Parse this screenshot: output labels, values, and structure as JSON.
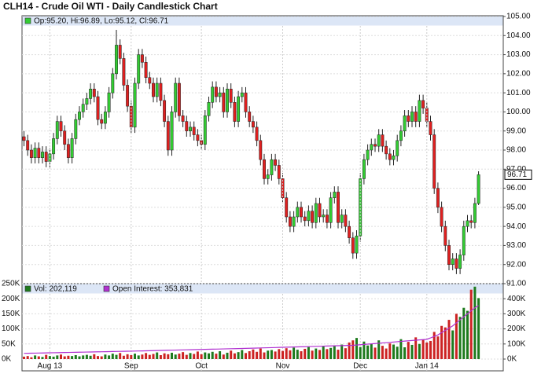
{
  "chart_data": [
    {
      "type": "candlestick",
      "title": "CLH14 - Crude Oil WTI - Daily Candlestick Chart",
      "legend": "Op:95.20, Hi:96.89, Lo:95.12, Cl:96.71",
      "up_color": "#33cc33",
      "down_color": "#e02020",
      "grid": true,
      "ylim": [
        91,
        105
      ],
      "yticks": [
        {
          "value": 91,
          "label": "91.00"
        },
        {
          "value": 92,
          "label": "92.00"
        },
        {
          "value": 93,
          "label": "93.00"
        },
        {
          "value": 94,
          "label": "94.00"
        },
        {
          "value": 95,
          "label": "95.00"
        },
        {
          "value": 96,
          "label": "96.00"
        },
        {
          "value": 97,
          "label": "97.00"
        },
        {
          "value": 98,
          "label": "98.00"
        },
        {
          "value": 99,
          "label": "99.00"
        },
        {
          "value": 100,
          "label": "100.00"
        },
        {
          "value": 101,
          "label": "101.00"
        },
        {
          "value": 102,
          "label": "102.00"
        },
        {
          "value": 103,
          "label": "103.00"
        },
        {
          "value": 104,
          "label": "104.00"
        },
        {
          "value": 105,
          "label": "105.00"
        }
      ],
      "open": [
        98.7,
        98.5,
        98.0,
        97.6,
        98.1,
        97.6,
        97.9,
        97.4,
        97.8,
        98.6,
        99.5,
        99.0,
        98.3,
        97.6,
        98.6,
        99.6,
        100.0,
        100.4,
        100.7,
        101.2,
        100.8,
        99.6,
        99.4,
        100.0,
        101.0,
        102.0,
        103.5,
        102.8,
        101.4,
        100.3,
        99.2,
        101.5,
        103.0,
        102.6,
        101.8,
        101.5,
        100.8,
        101.5,
        100.6,
        99.5,
        98.0,
        100.0,
        101.5,
        99.8,
        99.5,
        99.0,
        99.2,
        98.8,
        98.5,
        98.3,
        99.8,
        100.5,
        101.3,
        100.8,
        101.0,
        100.0,
        101.2,
        100.5,
        99.5,
        100.8,
        101.0,
        100.0,
        99.5,
        99.2,
        98.5,
        97.5,
        96.5,
        96.7,
        97.5,
        97.2,
        96.5,
        95.5,
        94.5,
        94.0,
        94.5,
        95.0,
        94.5,
        94.3,
        94.8,
        94.2,
        95.2,
        94.5,
        94.6,
        94.2,
        95.5,
        95.8,
        94.2,
        94.6,
        94.0,
        93.4,
        92.6,
        93.5,
        96.5,
        97.5,
        98.0,
        98.3,
        98.2,
        98.8,
        98.2,
        97.8,
        97.5,
        97.7,
        98.5,
        99.0,
        99.8,
        99.5,
        100.0,
        99.5,
        100.6,
        100.2,
        99.5,
        98.8,
        96.0,
        95.0,
        94.0,
        93.0,
        92.0,
        92.3,
        91.8,
        92.5,
        94.0,
        94.3,
        94.2,
        95.2
      ],
      "high": [
        99.0,
        98.8,
        98.3,
        98.4,
        98.4,
        98.2,
        98.2,
        98.1,
        98.9,
        99.8,
        99.8,
        99.3,
        98.6,
        98.9,
        99.9,
        100.3,
        100.7,
        101.0,
        101.5,
        101.5,
        101.1,
        99.9,
        100.3,
        101.3,
        102.3,
        104.3,
        103.8,
        103.1,
        101.7,
        100.6,
        101.8,
        103.3,
        103.3,
        102.9,
        102.1,
        101.8,
        101.8,
        101.8,
        100.9,
        99.8,
        100.3,
        101.8,
        101.8,
        100.1,
        99.8,
        99.5,
        99.5,
        99.1,
        98.8,
        100.1,
        100.8,
        101.6,
        101.6,
        101.3,
        101.3,
        101.5,
        101.5,
        100.8,
        101.1,
        101.3,
        101.3,
        100.3,
        99.8,
        99.5,
        98.8,
        97.8,
        97.0,
        97.8,
        97.8,
        97.5,
        96.8,
        95.8,
        94.8,
        94.8,
        95.3,
        95.3,
        94.8,
        95.1,
        95.1,
        95.5,
        95.5,
        94.9,
        94.9,
        95.8,
        96.1,
        96.1,
        94.9,
        94.9,
        94.3,
        93.7,
        93.8,
        96.8,
        97.8,
        98.3,
        98.6,
        98.6,
        99.1,
        99.1,
        98.5,
        98.1,
        98.0,
        98.8,
        99.3,
        100.1,
        100.1,
        100.3,
        100.3,
        100.9,
        100.9,
        100.5,
        99.8,
        99.1,
        96.3,
        95.3,
        94.3,
        93.3,
        92.6,
        92.6,
        92.8,
        94.3,
        94.6,
        94.6,
        95.5,
        96.89
      ],
      "low": [
        98.2,
        97.7,
        97.3,
        97.3,
        97.3,
        97.3,
        97.1,
        97.1,
        97.5,
        98.3,
        98.7,
        98.0,
        97.3,
        97.3,
        98.3,
        99.3,
        99.7,
        100.1,
        100.4,
        100.5,
        99.3,
        99.1,
        99.1,
        99.7,
        100.7,
        101.7,
        102.5,
        101.1,
        100.0,
        98.9,
        98.9,
        101.2,
        102.3,
        101.5,
        101.2,
        100.5,
        100.5,
        100.3,
        99.2,
        97.7,
        97.7,
        99.7,
        99.5,
        99.2,
        98.7,
        98.7,
        98.5,
        98.2,
        98.0,
        98.0,
        99.5,
        100.2,
        100.5,
        100.5,
        99.7,
        99.7,
        100.2,
        99.2,
        99.2,
        100.5,
        99.7,
        99.2,
        98.9,
        98.2,
        97.2,
        96.2,
        96.2,
        96.4,
        96.9,
        96.2,
        95.2,
        94.2,
        93.7,
        93.7,
        94.2,
        94.2,
        94.0,
        94.0,
        93.9,
        93.9,
        94.2,
        94.2,
        93.9,
        93.9,
        95.2,
        93.9,
        93.9,
        93.7,
        93.1,
        92.3,
        92.3,
        93.2,
        96.2,
        97.2,
        97.7,
        97.9,
        97.9,
        97.9,
        97.5,
        97.2,
        97.2,
        97.4,
        98.2,
        98.7,
        99.2,
        99.2,
        99.2,
        99.2,
        99.9,
        99.2,
        98.5,
        95.7,
        94.7,
        93.7,
        92.7,
        91.7,
        91.7,
        91.5,
        91.5,
        92.2,
        93.7,
        93.9,
        93.9,
        95.12
      ],
      "close": [
        98.5,
        98.0,
        97.6,
        98.1,
        97.6,
        97.9,
        97.4,
        97.8,
        98.6,
        99.5,
        99.0,
        98.3,
        97.6,
        98.6,
        99.6,
        100.0,
        100.4,
        100.7,
        101.2,
        100.8,
        99.6,
        99.4,
        100.0,
        101.0,
        102.0,
        103.5,
        102.8,
        101.4,
        100.3,
        99.2,
        101.5,
        103.0,
        102.6,
        101.8,
        101.5,
        100.8,
        101.5,
        100.6,
        99.5,
        98.0,
        100.0,
        101.5,
        99.8,
        99.5,
        99.0,
        99.2,
        98.8,
        98.5,
        98.3,
        99.8,
        100.5,
        101.3,
        100.8,
        101.0,
        100.0,
        101.2,
        100.5,
        99.5,
        100.8,
        101.0,
        100.0,
        99.5,
        99.2,
        98.5,
        97.5,
        96.5,
        96.7,
        97.5,
        97.2,
        96.5,
        95.5,
        94.5,
        94.0,
        94.5,
        95.0,
        94.5,
        94.3,
        94.8,
        94.2,
        95.2,
        94.5,
        94.6,
        94.2,
        95.5,
        95.8,
        94.2,
        94.6,
        94.0,
        93.4,
        92.6,
        93.5,
        96.5,
        97.5,
        98.0,
        98.3,
        98.2,
        98.8,
        98.2,
        97.8,
        97.5,
        97.7,
        98.5,
        99.0,
        99.8,
        99.5,
        100.0,
        99.5,
        100.6,
        100.2,
        99.5,
        98.8,
        96.0,
        95.0,
        94.0,
        93.0,
        92.0,
        92.3,
        91.8,
        92.5,
        94.0,
        94.3,
        94.2,
        95.2,
        96.71
      ]
    },
    {
      "type": "volume",
      "grid": true,
      "categories": [
        null,
        null,
        null,
        null,
        null,
        null,
        null,
        "Aug 13",
        null,
        null,
        null,
        null,
        null,
        null,
        null,
        null,
        null,
        null,
        null,
        null,
        null,
        null,
        null,
        null,
        null,
        null,
        null,
        null,
        null,
        "Sep",
        null,
        null,
        null,
        null,
        null,
        null,
        null,
        null,
        null,
        null,
        null,
        null,
        null,
        null,
        null,
        null,
        null,
        null,
        "Oct",
        null,
        null,
        null,
        null,
        null,
        null,
        null,
        null,
        null,
        null,
        null,
        null,
        null,
        null,
        null,
        null,
        null,
        null,
        null,
        null,
        null,
        "Nov",
        null,
        null,
        null,
        null,
        null,
        null,
        null,
        null,
        null,
        null,
        null,
        null,
        null,
        null,
        null,
        null,
        null,
        null,
        null,
        null,
        "Dec",
        null,
        null,
        null,
        null,
        null,
        null,
        null,
        null,
        null,
        null,
        null,
        null,
        null,
        null,
        null,
        null,
        null,
        "Jan 14",
        null,
        null,
        null,
        null,
        null,
        null,
        null,
        null,
        null,
        null,
        null,
        null,
        null,
        null
      ],
      "ylim": [
        0,
        250000
      ],
      "yticks": [
        {
          "value": 0,
          "label": "0K"
        },
        {
          "value": 50000,
          "label": "50K"
        },
        {
          "value": 100000,
          "label": "100K"
        },
        {
          "value": 150000,
          "label": "150K"
        },
        {
          "value": 200000,
          "label": "200K"
        },
        {
          "value": 250000,
          "label": "250K"
        }
      ],
      "y2lim": [
        0,
        500000
      ],
      "y2ticks": [
        {
          "value": 0,
          "label": "0K"
        },
        {
          "value": 100000,
          "label": "100K"
        },
        {
          "value": 200000,
          "label": "200K"
        },
        {
          "value": 300000,
          "label": "300K"
        },
        {
          "value": 400000,
          "label": "400K"
        }
      ],
      "series": [
        {
          "name": "Vol: 202,119",
          "color": "#1d7a1d",
          "down_color": "#cc2222",
          "values": [
            8000,
            10000,
            6000,
            12000,
            9000,
            7000,
            14000,
            10000,
            8000,
            12000,
            15000,
            9000,
            11000,
            10000,
            13000,
            9000,
            12000,
            14000,
            11000,
            16000,
            10000,
            9000,
            15000,
            12000,
            18000,
            14000,
            20000,
            11000,
            16000,
            13000,
            18000,
            12000,
            15000,
            20000,
            14000,
            17000,
            22000,
            13000,
            19000,
            16000,
            21000,
            15000,
            18000,
            23000,
            14000,
            20000,
            17000,
            25000,
            16000,
            22000,
            19000,
            24000,
            18000,
            26000,
            15000,
            21000,
            28000,
            19000,
            23000,
            30000,
            20000,
            26000,
            32000,
            24000,
            35000,
            22000,
            28000,
            30000,
            25000,
            33000,
            27000,
            36000,
            29000,
            38000,
            31000,
            26000,
            34000,
            40000,
            28000,
            35000,
            30000,
            42000,
            33000,
            37000,
            45000,
            31000,
            48000,
            36000,
            55000,
            62000,
            70000,
            40000,
            58000,
            45000,
            50000,
            38000,
            62000,
            44000,
            35000,
            52000,
            48000,
            41000,
            66000,
            39000,
            57000,
            47000,
            72000,
            50000,
            64000,
            55000,
            60000,
            90000,
            75000,
            110000,
            105000,
            130000,
            95000,
            150000,
            140000,
            170000,
            160000,
            230000,
            240000,
            202119
          ]
        },
        {
          "name": "Open Interest: 353,831",
          "color": "#b030d0",
          "axis": "y2",
          "values": [
            38000,
            38500,
            39000,
            39500,
            40000,
            40500,
            41000,
            41500,
            42000,
            42500,
            43000,
            43500,
            44000,
            44500,
            45000,
            45500,
            46000,
            46500,
            47000,
            47500,
            48000,
            48500,
            49000,
            49500,
            50000,
            50500,
            51000,
            51500,
            52000,
            52500,
            53000,
            53600,
            54200,
            54800,
            55400,
            56000,
            56600,
            57200,
            57800,
            58400,
            59000,
            59600,
            60200,
            60800,
            61400,
            62000,
            62600,
            63200,
            63800,
            64400,
            65000,
            65600,
            66200,
            66800,
            67400,
            68000,
            68600,
            69200,
            69800,
            70400,
            71000,
            71700,
            72400,
            73100,
            73800,
            74500,
            75200,
            75900,
            76600,
            77300,
            78000,
            78700,
            79400,
            80100,
            80800,
            81500,
            82200,
            82900,
            83600,
            84300,
            85000,
            85700,
            86400,
            87100,
            87800,
            88500,
            89200,
            89900,
            90600,
            91300,
            93000,
            95000,
            97000,
            99000,
            101000,
            103000,
            105000,
            107000,
            109000,
            111000,
            113000,
            115000,
            117000,
            119000,
            121000,
            123000,
            125000,
            127000,
            129000,
            131000,
            140000,
            150000,
            160000,
            175000,
            190000,
            205000,
            220000,
            240000,
            260000,
            280000,
            300000,
            320000,
            340000,
            353831
          ]
        }
      ]
    }
  ]
}
